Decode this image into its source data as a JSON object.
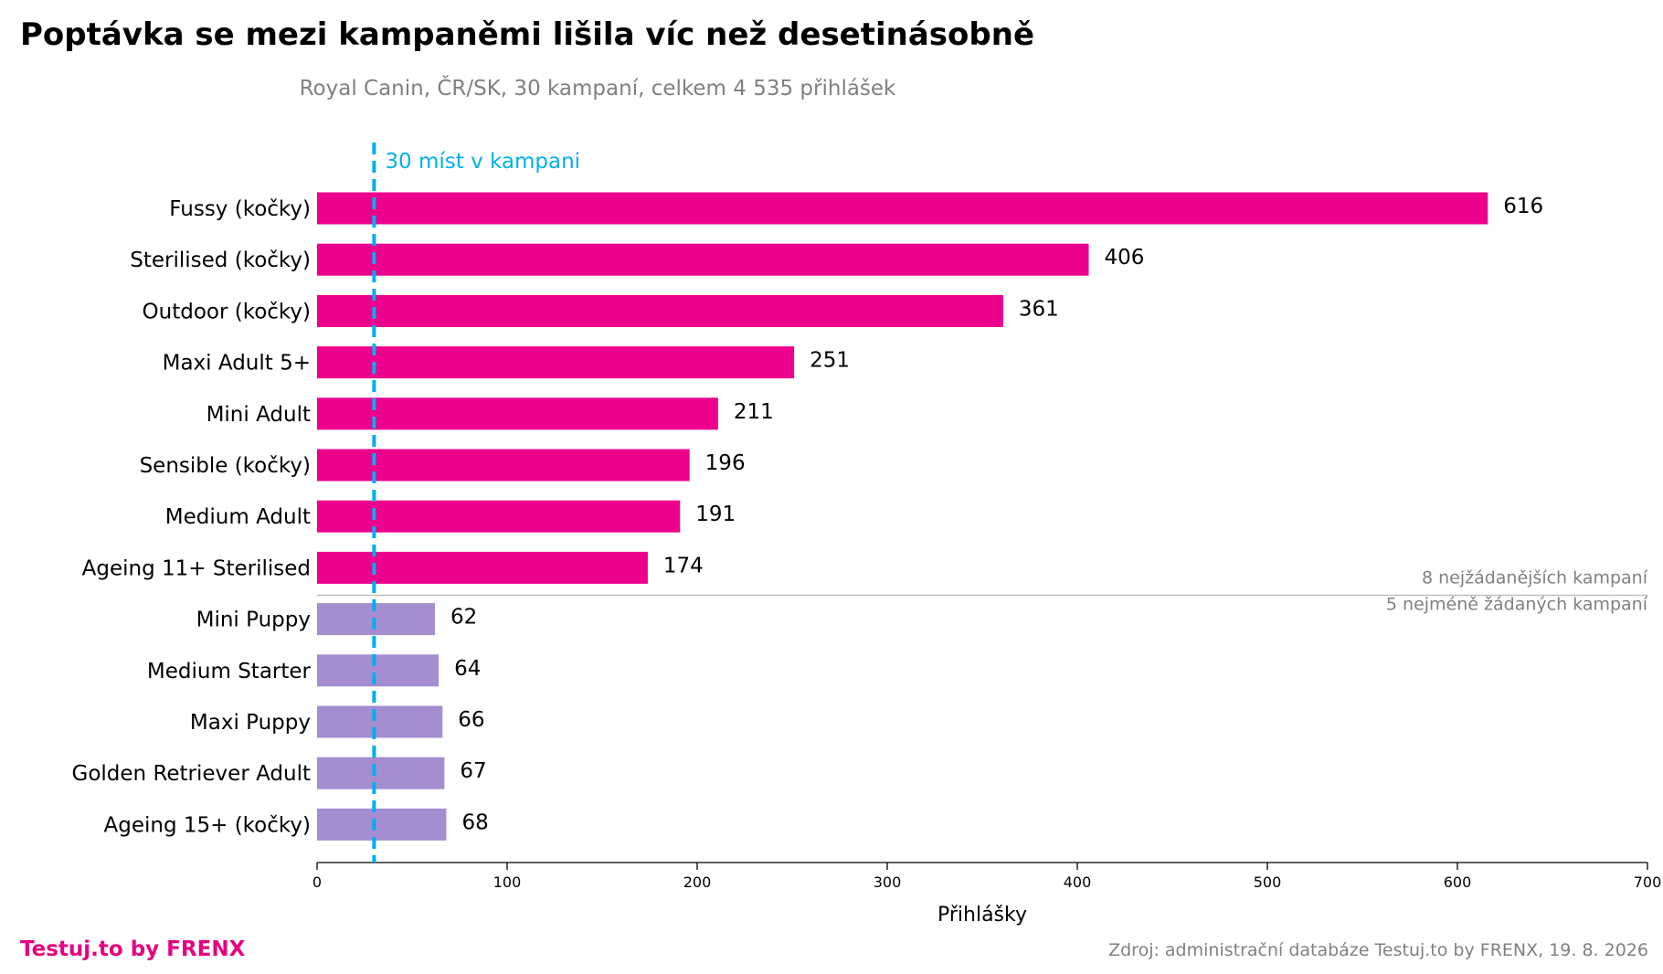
{
  "title": "Poptávka se mezi kampaněmi lišila víc než desetinásobně",
  "subtitle": "Royal Canin, ČR/SK, 30 kampaní, celkem 4 535 přihlášek",
  "footer": {
    "brand": "Testuj.to by FRENX",
    "source": "Zdroj: administrační databáze Testuj.to by FRENX, 19. 8. 2026"
  },
  "colors": {
    "top_bars": "#ec008c",
    "bottom_bars": "#a58dd0",
    "reference_line": "#00aeef",
    "brand": "#e6007e",
    "muted_text": "#808080",
    "separator": "#c0c0c0"
  },
  "chart_data": {
    "type": "bar",
    "orientation": "horizontal",
    "categories": [
      "Fussy (kočky)",
      "Sterilised (kočky)",
      "Outdoor (kočky)",
      "Maxi Adult 5+",
      "Mini Adult",
      "Sensible (kočky)",
      "Medium Adult",
      "Ageing 11+ Sterilised",
      "Mini Puppy",
      "Medium Starter",
      "Maxi Puppy",
      "Golden Retriever Adult",
      "Ageing 15+ (kočky)"
    ],
    "values": [
      616,
      406,
      361,
      251,
      211,
      196,
      191,
      174,
      62,
      64,
      66,
      67,
      68
    ],
    "groups": [
      {
        "label": "8 nejžádanějších kampaní",
        "count": 8,
        "color": "#ec008c"
      },
      {
        "label": "5 nejméně žádaných kampaní",
        "count": 5,
        "color": "#a58dd0"
      }
    ],
    "xlabel": "Přihlášky",
    "ylabel": "",
    "xlim": [
      0,
      700
    ],
    "xticks": [
      0,
      100,
      200,
      300,
      400,
      500,
      600,
      700
    ],
    "reference_line": {
      "value": 30,
      "label": "30 míst v kampani"
    },
    "data_labels": true,
    "grid": false,
    "legend": "none"
  }
}
